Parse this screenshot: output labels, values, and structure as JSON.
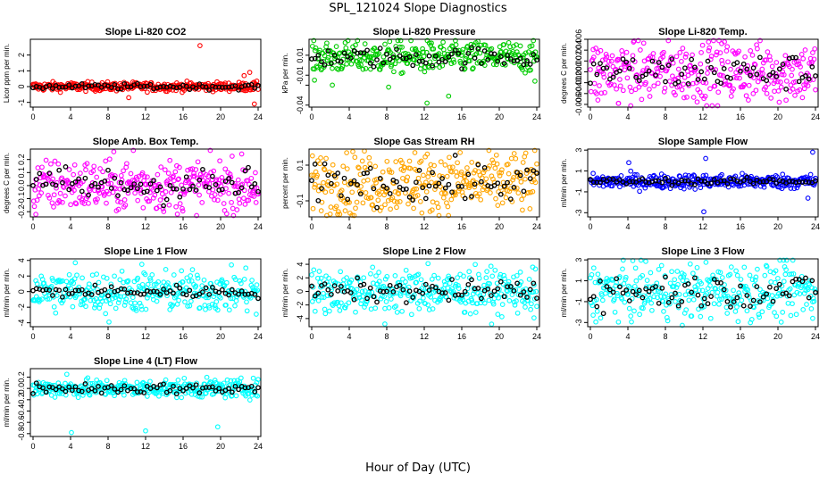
{
  "figure": {
    "title": "SPL_121024  Slope Diagnostics",
    "xlabel": "Hour of Day (UTC)"
  },
  "chart_data": [
    {
      "type": "scatter",
      "title": "Slope Li-820 CO2",
      "ylabel": "Licor ppm per min.",
      "xlim": [
        0,
        24
      ],
      "xticks": [
        0,
        4,
        8,
        12,
        16,
        20,
        24
      ],
      "ylim": [
        -1.3,
        3.0
      ],
      "yticks": [
        -1,
        0,
        1,
        2
      ],
      "color": "#ff0000",
      "hourly_color": "#000000",
      "minute_spread": 0.14,
      "hourly_spread": 0.09,
      "outliers": [
        [
          17.8,
          2.6
        ],
        [
          23.1,
          0.9
        ],
        [
          22.5,
          0.7
        ],
        [
          23.6,
          -1.1
        ],
        [
          10.2,
          -0.7
        ]
      ]
    },
    {
      "type": "scatter",
      "title": "Slope Li-820 Pressure",
      "ylabel": "kPa per min.",
      "xlim": [
        0,
        24
      ],
      "xticks": [
        0,
        4,
        8,
        12,
        16,
        20,
        24
      ],
      "ylim": [
        -0.042,
        0.026
      ],
      "yticks": [
        -0.04,
        -0.02,
        -0.01,
        0.01
      ],
      "yticklabels": [
        "-0.04",
        "",
        "-0.01",
        "0.01"
      ],
      "color": "#00cc00",
      "hourly_color": "#000000",
      "minute_spread": 0.008,
      "hourly_spread": 0.005,
      "offset": 0.008,
      "outliers": [
        [
          12.3,
          -0.038
        ],
        [
          14.6,
          -0.031
        ],
        [
          8.2,
          -0.022
        ],
        [
          2.2,
          -0.02
        ],
        [
          23.8,
          -0.016
        ],
        [
          0.3,
          -0.015
        ]
      ]
    },
    {
      "type": "scatter",
      "title": "Slope Li-820 Temp.",
      "ylabel": "degrees C per min.",
      "xlim": [
        0,
        24
      ],
      "xticks": [
        0,
        4,
        8,
        12,
        16,
        20,
        24
      ],
      "ylim": [
        -0.0065,
        0.006
      ],
      "yticks": [
        -0.006,
        -0.004,
        -0.002,
        0.0,
        0.002,
        0.004,
        0.006
      ],
      "yticklabels": [
        "-0.006",
        "-0.004",
        "-0.002",
        "0.000",
        "0.002",
        "0.004",
        "0.006"
      ],
      "color": "#ff00ff",
      "hourly_color": "#000000",
      "minute_spread": 0.0028,
      "hourly_spread": 0.0016,
      "outliers": [
        [
          3.0,
          -0.0058
        ],
        [
          12.6,
          0.0055
        ],
        [
          14.0,
          0.0052
        ],
        [
          0.8,
          -0.0052
        ]
      ]
    },
    {
      "type": "scatter",
      "title": "Slope Amb. Box Temp.",
      "ylabel": "degrees C per min.",
      "xlim": [
        0,
        24
      ],
      "xticks": [
        0,
        4,
        8,
        12,
        16,
        20,
        24
      ],
      "ylim": [
        -0.24,
        0.28
      ],
      "yticks": [
        -0.2,
        -0.1,
        0.0,
        0.1,
        0.2
      ],
      "yticklabels": [
        "-0.2",
        "-0.1",
        "0.0",
        "0.1",
        "0.2"
      ],
      "color": "#ff00ff",
      "hourly_color": "#000000",
      "minute_spread": 0.1,
      "hourly_spread": 0.07,
      "outliers": [
        [
          10.7,
          0.27
        ],
        [
          0.3,
          -0.22
        ]
      ]
    },
    {
      "type": "scatter",
      "title": "Slope Gas Stream RH",
      "ylabel": "percent per min.",
      "xlim": [
        0,
        24
      ],
      "xticks": [
        0,
        4,
        8,
        12,
        16,
        20,
        24
      ],
      "ylim": [
        -0.19,
        0.19
      ],
      "yticks": [
        -0.1,
        0.1
      ],
      "yticklabels": [
        "-0.1",
        "0.1"
      ],
      "color": "#ffa500",
      "hourly_color": "#000000",
      "minute_spread": 0.085,
      "hourly_spread": 0.055,
      "outliers": [
        [
          4.3,
          -0.18
        ],
        [
          11.0,
          0.17
        ]
      ]
    },
    {
      "type": "scatter",
      "title": "Slope Sample Flow",
      "ylabel": "ml/min per min.",
      "xlim": [
        0,
        24
      ],
      "xticks": [
        0,
        4,
        8,
        12,
        16,
        20,
        24
      ],
      "ylim": [
        -3.4,
        3.1
      ],
      "yticks": [
        -3,
        -1,
        1,
        3
      ],
      "yticklabels": [
        "-3",
        "-1",
        "1",
        "3"
      ],
      "color": "#0000ff",
      "hourly_color": "#000000",
      "minute_spread": 0.35,
      "hourly_spread": 0.15,
      "outliers": [
        [
          12.3,
          2.2
        ],
        [
          12.1,
          -2.9
        ],
        [
          23.7,
          2.8
        ],
        [
          4.1,
          1.8
        ],
        [
          23.2,
          -1.6
        ]
      ]
    },
    {
      "type": "scatter",
      "title": "Slope Line 1 Flow",
      "ylabel": "ml/min per min.",
      "xlim": [
        0,
        24
      ],
      "xticks": [
        0,
        4,
        8,
        12,
        16,
        20,
        24
      ],
      "ylim": [
        -4.5,
        4.2
      ],
      "yticks": [
        -4,
        -2,
        0,
        2,
        4
      ],
      "color": "#00ffff",
      "hourly_color": "#000000",
      "minute_spread": 1.3,
      "hourly_spread": 0.4,
      "outliers": [
        [
          4.5,
          3.7
        ],
        [
          8.1,
          -3.9
        ],
        [
          11.6,
          3.5
        ],
        [
          23.8,
          -2.9
        ]
      ]
    },
    {
      "type": "scatter",
      "title": "Slope Line 2 Flow",
      "ylabel": "ml/min per min.",
      "xlim": [
        0,
        24
      ],
      "xticks": [
        0,
        4,
        8,
        12,
        16,
        20,
        24
      ],
      "ylim": [
        -5.2,
        4.8
      ],
      "yticks": [
        -4,
        -2,
        0,
        2,
        4
      ],
      "color": "#00ffff",
      "hourly_color": "#000000",
      "minute_spread": 1.6,
      "hourly_spread": 0.8,
      "outliers": [
        [
          7.8,
          -4.8
        ],
        [
          12.4,
          4.1
        ],
        [
          23.7,
          -3.9
        ]
      ]
    },
    {
      "type": "scatter",
      "title": "Slope Line 3 Flow",
      "ylabel": "ml/min per min.",
      "xlim": [
        0,
        24
      ],
      "xticks": [
        0,
        4,
        8,
        12,
        16,
        20,
        24
      ],
      "ylim": [
        -3.4,
        3.1
      ],
      "yticks": [
        -3,
        -1,
        1,
        3
      ],
      "yticklabels": [
        "-3",
        "-1",
        "1",
        "3"
      ],
      "color": "#00ffff",
      "hourly_color": "#000000",
      "minute_spread": 1.3,
      "hourly_spread": 0.8,
      "outliers": [
        [
          9.8,
          -3.3
        ],
        [
          20.6,
          3.0
        ],
        [
          23.7,
          -2.6
        ]
      ]
    },
    {
      "type": "scatter",
      "title": "Slope Line 4 (LT) Flow",
      "ylabel": "ml/min per min.",
      "xlim": [
        0,
        24
      ],
      "xticks": [
        0,
        4,
        8,
        12,
        16,
        20,
        24
      ],
      "ylim": [
        -0.85,
        0.35
      ],
      "yticks": [
        -0.8,
        -0.6,
        -0.4,
        -0.2,
        0.0,
        0.2
      ],
      "yticklabels": [
        "-0.8",
        "-0.6",
        "-0.4",
        "-0.2",
        "0.0",
        "0.2"
      ],
      "color": "#00ffff",
      "hourly_color": "#000000",
      "minute_spread": 0.08,
      "hourly_spread": 0.05,
      "outliers": [
        [
          4.1,
          -0.78
        ],
        [
          12.0,
          -0.75
        ],
        [
          19.7,
          -0.68
        ],
        [
          3.6,
          0.25
        ]
      ]
    }
  ]
}
